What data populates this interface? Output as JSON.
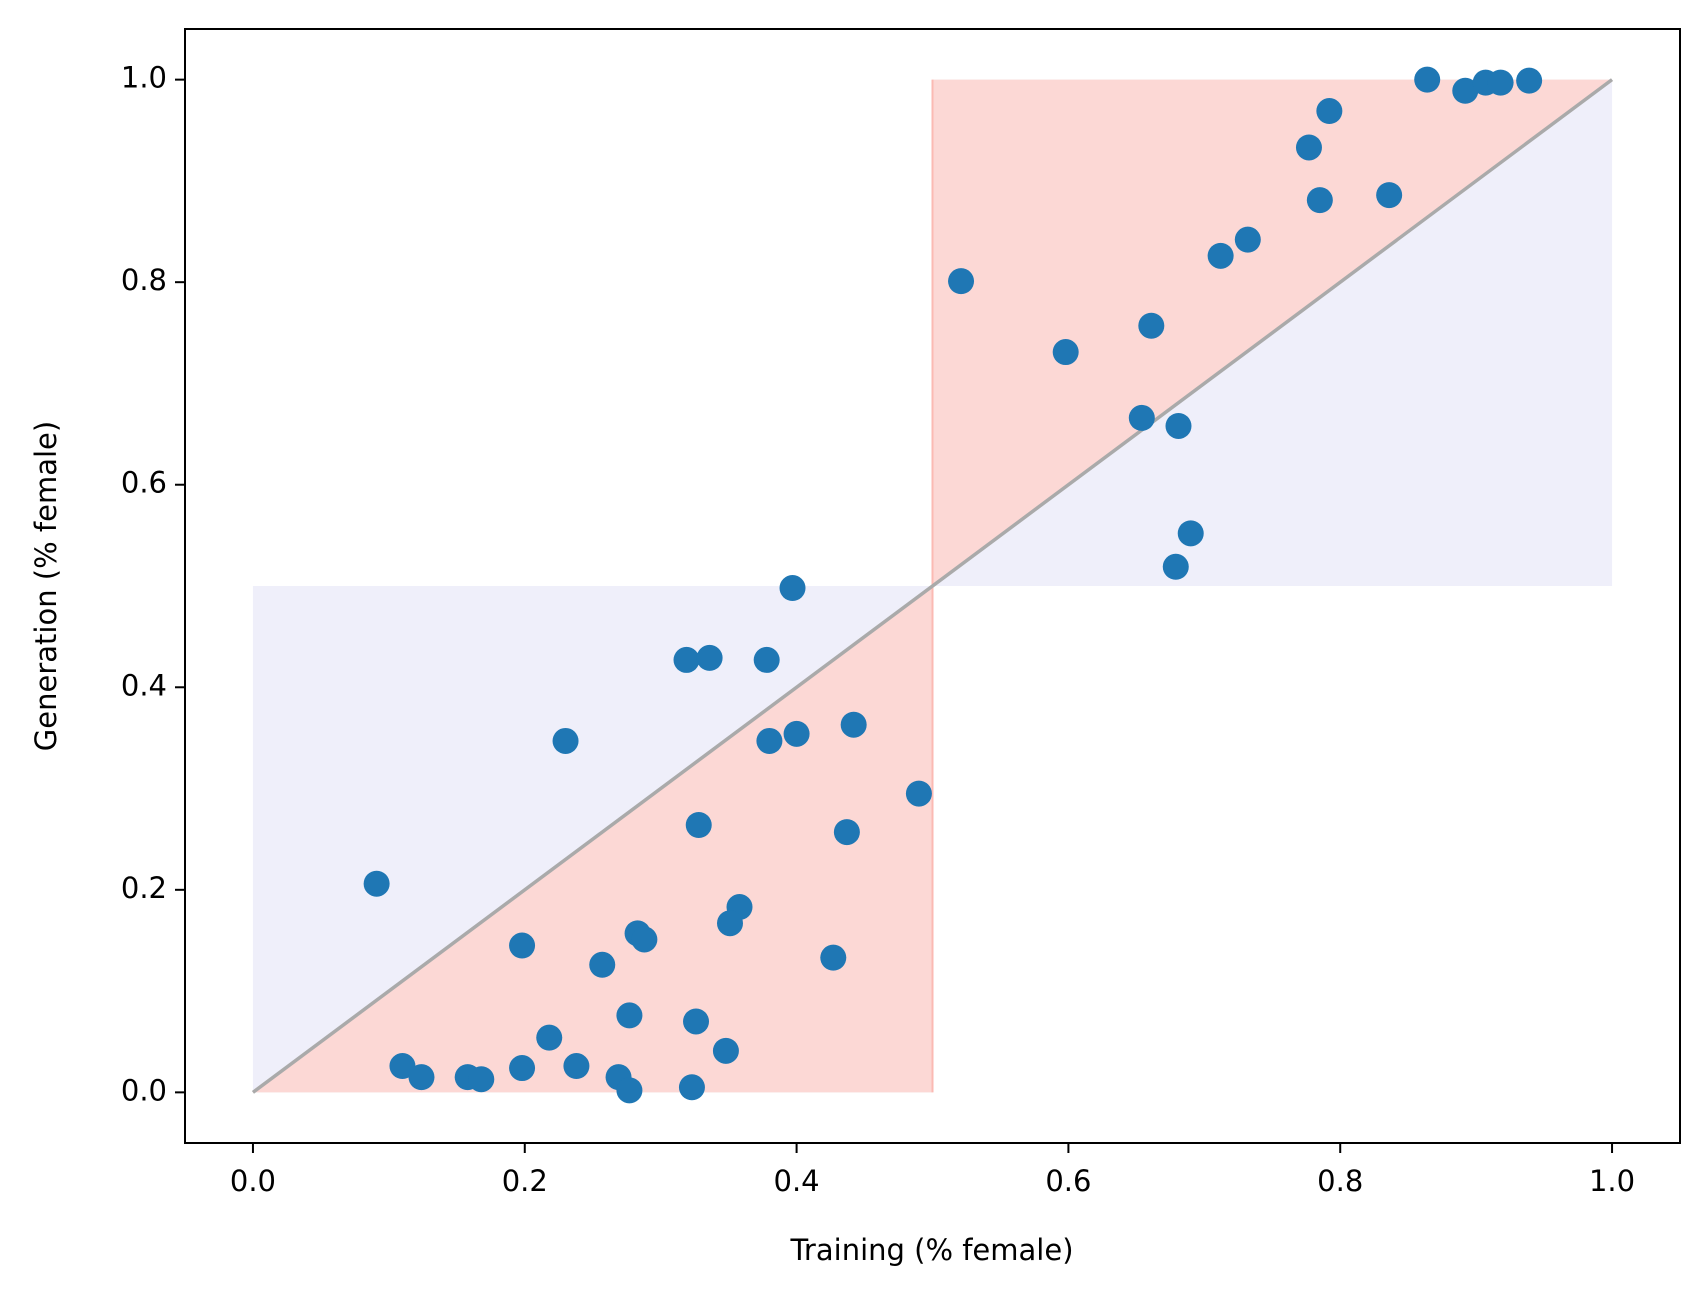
{
  "chart_data": {
    "type": "scatter",
    "x_label": "Training (% female)",
    "y_label": "Generation (% female)",
    "color": "#1f77b4",
    "x": [
      0.864,
      0.892,
      0.907,
      0.918,
      0.939,
      0.792,
      0.777,
      0.785,
      0.836,
      0.732,
      0.712,
      0.521,
      0.598,
      0.661,
      0.654,
      0.681,
      0.69,
      0.679,
      0.397,
      0.319,
      0.336,
      0.378,
      0.23,
      0.38,
      0.4,
      0.442,
      0.49,
      0.328,
      0.437,
      0.091,
      0.358,
      0.351,
      0.198,
      0.283,
      0.288,
      0.257,
      0.427,
      0.277,
      0.326,
      0.218,
      0.348,
      0.11,
      0.124,
      0.158,
      0.168,
      0.198,
      0.238,
      0.269,
      0.277,
      0.323
    ],
    "values": [
      1.0,
      0.989,
      0.997,
      0.997,
      0.999,
      0.969,
      0.933,
      0.881,
      0.886,
      0.842,
      0.826,
      0.801,
      0.731,
      0.757,
      0.666,
      0.658,
      0.552,
      0.519,
      0.498,
      0.427,
      0.429,
      0.427,
      0.347,
      0.347,
      0.354,
      0.363,
      0.295,
      0.264,
      0.257,
      0.206,
      0.183,
      0.167,
      0.145,
      0.157,
      0.151,
      0.126,
      0.133,
      0.076,
      0.07,
      0.054,
      0.041,
      0.026,
      0.015,
      0.015,
      0.013,
      0.024,
      0.026,
      0.015,
      0.002,
      0.005
    ],
    "xlim": [
      -0.05,
      1.05
    ],
    "ylim": [
      -0.05,
      1.05
    ],
    "xticks": [
      {
        "value": 0,
        "label": "0.0"
      },
      0.2,
      0.4,
      0.6,
      0.8,
      {
        "value": 1,
        "label": "1.0"
      }
    ],
    "yticks": [
      {
        "value": 0,
        "label": "0.0"
      },
      0.2,
      0.4,
      0.6,
      0.8,
      {
        "value": 1,
        "label": "1.0"
      }
    ],
    "grid": false
  }
}
